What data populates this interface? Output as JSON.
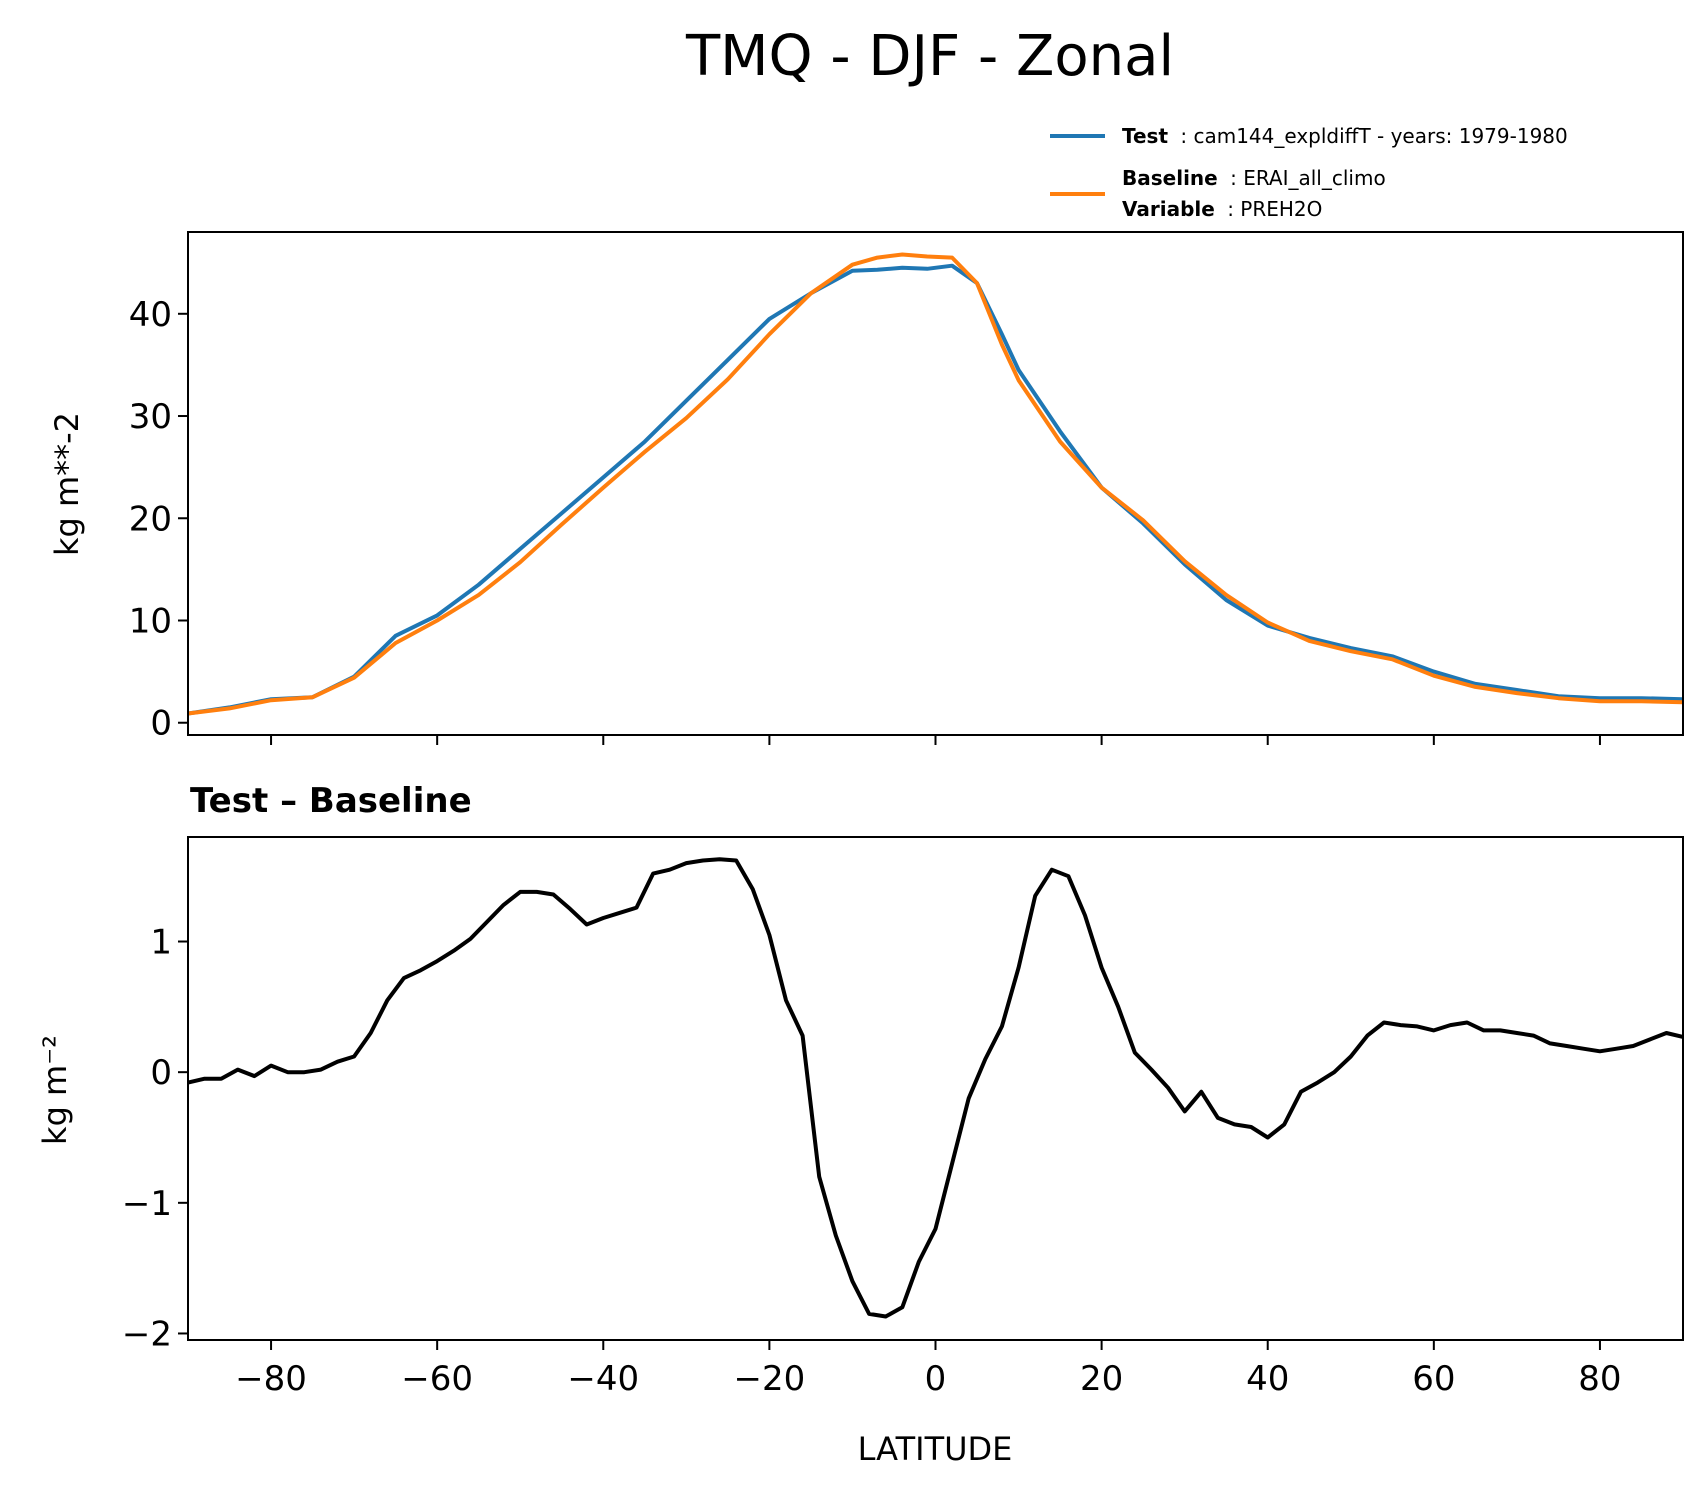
{
  "title": "TMQ - DJF - Zonal",
  "legend": {
    "test": {
      "label": "Test",
      "text": "cam144_expldiffT - years: 1979-1980",
      "color": "#1f77b4"
    },
    "baseline": {
      "label": "Baseline",
      "text": "ERAI_all_climo",
      "color": "#ff7f0e"
    },
    "variable": {
      "label": "Variable",
      "text": "PREH2O"
    }
  },
  "colors": {
    "test": "#1f77b4",
    "baseline": "#ff7f0e",
    "diff": "#000000"
  },
  "chart_data": [
    {
      "type": "line",
      "title": "",
      "xlabel": "",
      "ylabel": "kg m**-2",
      "xlim": [
        -90,
        90
      ],
      "ylim": [
        -1.2,
        48
      ],
      "xticks": [
        -80,
        -60,
        -40,
        -20,
        0,
        20,
        40,
        60,
        80
      ],
      "yticks": [
        0,
        10,
        20,
        30,
        40
      ],
      "x": [
        -90,
        -85,
        -80,
        -75,
        -70,
        -65,
        -60,
        -55,
        -50,
        -45,
        -40,
        -35,
        -30,
        -25,
        -20,
        -15,
        -10,
        -7,
        -4,
        -1,
        2,
        5,
        8,
        10,
        15,
        20,
        25,
        30,
        35,
        40,
        45,
        50,
        55,
        60,
        65,
        70,
        75,
        80,
        85,
        90
      ],
      "series": [
        {
          "name": "Test",
          "values": [
            0.9,
            1.5,
            2.3,
            2.5,
            4.5,
            8.5,
            10.5,
            13.5,
            17.0,
            20.5,
            24.0,
            27.5,
            31.5,
            35.5,
            39.5,
            42.0,
            44.2,
            44.3,
            44.5,
            44.4,
            44.7,
            43.0,
            38.0,
            34.5,
            28.5,
            23.0,
            19.5,
            15.5,
            12.0,
            9.5,
            8.3,
            7.3,
            6.5,
            5.0,
            3.8,
            3.2,
            2.6,
            2.4,
            2.4,
            2.3
          ]
        },
        {
          "name": "Baseline",
          "values": [
            0.9,
            1.4,
            2.2,
            2.5,
            4.4,
            7.8,
            10.0,
            12.5,
            15.7,
            19.4,
            23.0,
            26.5,
            29.8,
            33.6,
            38.0,
            42.0,
            44.8,
            45.5,
            45.8,
            45.6,
            45.5,
            43.0,
            37.0,
            33.5,
            27.5,
            23.0,
            19.8,
            15.8,
            12.5,
            9.8,
            8.0,
            7.0,
            6.2,
            4.6,
            3.5,
            2.9,
            2.4,
            2.1,
            2.1,
            2.0
          ]
        }
      ]
    },
    {
      "type": "line",
      "title": "Test – Baseline",
      "xlabel": "LATITUDE",
      "ylabel": "kg m⁻²",
      "xlim": [
        -90,
        90
      ],
      "ylim": [
        -2.05,
        1.8
      ],
      "xticks": [
        -80,
        -60,
        -40,
        -20,
        0,
        20,
        40,
        60,
        80
      ],
      "yticks": [
        -2,
        -1,
        0,
        1
      ],
      "x": [
        -90,
        -88,
        -86,
        -84,
        -82,
        -80,
        -78,
        -76,
        -74,
        -72,
        -70,
        -68,
        -66,
        -64,
        -62,
        -60,
        -58,
        -56,
        -54,
        -52,
        -50,
        -48,
        -46,
        -44,
        -42,
        -40,
        -38,
        -36,
        -34,
        -32,
        -30,
        -28,
        -26,
        -24,
        -22,
        -20,
        -18,
        -16,
        -14,
        -12,
        -10,
        -8,
        -6,
        -4,
        -2,
        0,
        2,
        4,
        6,
        8,
        10,
        12,
        14,
        16,
        18,
        20,
        22,
        24,
        26,
        28,
        30,
        32,
        34,
        36,
        38,
        40,
        42,
        44,
        46,
        48,
        50,
        52,
        54,
        56,
        58,
        60,
        62,
        64,
        66,
        68,
        70,
        72,
        74,
        76,
        78,
        80,
        82,
        84,
        86,
        88,
        90
      ],
      "series": [
        {
          "name": "",
          "values": [
            -0.08,
            -0.05,
            -0.05,
            0.02,
            -0.03,
            0.05,
            0.0,
            0.0,
            0.02,
            0.08,
            0.12,
            0.3,
            0.55,
            0.72,
            0.78,
            0.85,
            0.93,
            1.02,
            1.15,
            1.28,
            1.38,
            1.38,
            1.36,
            1.25,
            1.13,
            1.18,
            1.22,
            1.26,
            1.52,
            1.55,
            1.6,
            1.62,
            1.63,
            1.62,
            1.4,
            1.05,
            0.55,
            0.28,
            -0.8,
            -1.25,
            -1.6,
            -1.85,
            -1.87,
            -1.8,
            -1.45,
            -1.2,
            -0.7,
            -0.2,
            0.1,
            0.35,
            0.8,
            1.35,
            1.55,
            1.5,
            1.2,
            0.8,
            0.5,
            0.15,
            0.02,
            -0.12,
            -0.3,
            -0.15,
            -0.35,
            -0.4,
            -0.42,
            -0.5,
            -0.4,
            -0.15,
            -0.08,
            0.0,
            0.12,
            0.28,
            0.38,
            0.36,
            0.35,
            0.32,
            0.36,
            0.38,
            0.32,
            0.32,
            0.3,
            0.28,
            0.22,
            0.2,
            0.18,
            0.16,
            0.18,
            0.2,
            0.25,
            0.3,
            0.27
          ]
        }
      ]
    }
  ]
}
